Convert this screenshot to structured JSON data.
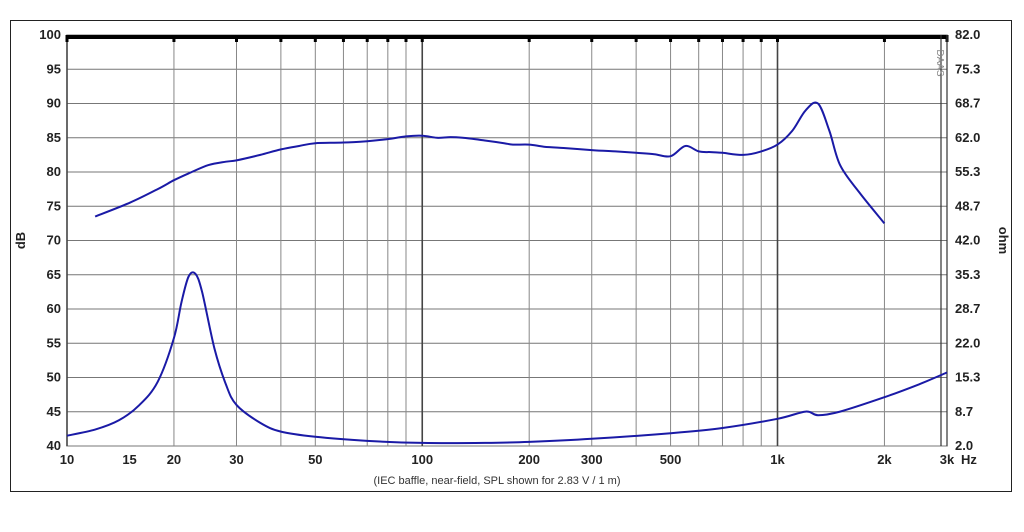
{
  "chart_data": {
    "type": "line",
    "xlabel": "Hz",
    "ylabel": "dB",
    "y2label": "ohm",
    "x_scale": "log",
    "xlim": [
      10,
      3000
    ],
    "ylim": [
      40,
      100
    ],
    "y2lim": [
      2.0,
      82.0
    ],
    "grid": true,
    "x_tick_labels": [
      {
        "v": 10,
        "t": "10"
      },
      {
        "v": 15,
        "t": "15"
      },
      {
        "v": 20,
        "t": "20"
      },
      {
        "v": 30,
        "t": "30"
      },
      {
        "v": 50,
        "t": "50"
      },
      {
        "v": 100,
        "t": "100"
      },
      {
        "v": 200,
        "t": "200"
      },
      {
        "v": 300,
        "t": "300"
      },
      {
        "v": 500,
        "t": "500"
      },
      {
        "v": 1000,
        "t": "1k"
      },
      {
        "v": 2000,
        "t": "2k"
      },
      {
        "v": 3000,
        "t": "3k"
      }
    ],
    "y_tick_labels": [
      "100",
      "95",
      "90",
      "85",
      "80",
      "75",
      "70",
      "65",
      "60",
      "55",
      "50",
      "45",
      "40"
    ],
    "y2_tick_labels": [
      "82.0",
      "75.3",
      "68.7",
      "62.0",
      "55.3",
      "48.7",
      "42.0",
      "35.3",
      "28.7",
      "22.0",
      "15.3",
      "8.7",
      "2.0"
    ],
    "note": "(IEC baffle, near-field, SPL shown for 2.83 V / 1 m)",
    "watermark": "DAAS",
    "line_color": "#1a1aa6",
    "series": [
      {
        "axis": "left",
        "x": [
          12,
          15,
          18,
          20,
          22,
          25,
          28,
          30,
          35,
          40,
          45,
          50,
          60,
          70,
          80,
          90,
          100,
          110,
          120,
          130,
          150,
          170,
          180,
          200,
          220,
          250,
          300,
          350,
          400,
          450,
          500,
          550,
          600,
          650,
          700,
          800,
          900,
          1000,
          1100,
          1200,
          1300,
          1400,
          1500,
          1700,
          2000
        ],
        "y": [
          73.5,
          75.5,
          77.5,
          78.8,
          79.8,
          81.0,
          81.5,
          81.7,
          82.5,
          83.3,
          83.8,
          84.2,
          84.3,
          84.5,
          84.8,
          85.2,
          85.3,
          85.0,
          85.1,
          85.0,
          84.6,
          84.2,
          84.0,
          84.0,
          83.7,
          83.5,
          83.2,
          83.0,
          82.8,
          82.6,
          82.3,
          83.8,
          83.0,
          82.9,
          82.8,
          82.5,
          83.0,
          84.0,
          86.0,
          89.0,
          90.0,
          86.0,
          81.0,
          77.0,
          72.5
        ]
      },
      {
        "axis": "right",
        "x": [
          10,
          12,
          14,
          16,
          18,
          20,
          21,
          22,
          23,
          24,
          26,
          28,
          30,
          35,
          40,
          50,
          70,
          100,
          150,
          200,
          300,
          500,
          700,
          1000,
          1200,
          1300,
          1500,
          2000,
          2500,
          3000
        ],
        "y": [
          4.0,
          5.2,
          7.0,
          10.0,
          14.5,
          23.0,
          30.0,
          35.0,
          35.5,
          32.0,
          21.0,
          14.0,
          10.0,
          6.5,
          4.8,
          3.8,
          3.0,
          2.6,
          2.6,
          2.8,
          3.4,
          4.5,
          5.5,
          7.3,
          8.7,
          8.0,
          8.7,
          11.5,
          14.0,
          16.3
        ]
      }
    ]
  }
}
